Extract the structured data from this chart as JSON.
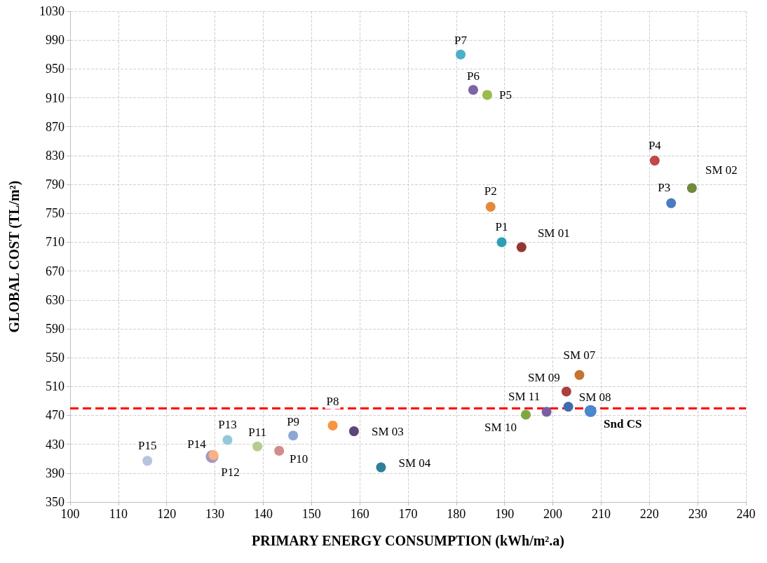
{
  "chart_data": {
    "type": "scatter",
    "xlabel": "PRIMARY ENERGY CONSUMPTION (kWh/m².a)",
    "ylabel": "GLOBAL COST (TL/m²)",
    "xlim": [
      100,
      240
    ],
    "xticks": [
      100,
      110,
      120,
      130,
      140,
      150,
      160,
      170,
      180,
      190,
      200,
      210,
      220,
      230,
      240
    ],
    "ylim": [
      350,
      1030
    ],
    "yticks": [
      350,
      390,
      430,
      470,
      510,
      550,
      590,
      630,
      670,
      710,
      750,
      790,
      830,
      870,
      910,
      950,
      990,
      1030
    ],
    "grid": true,
    "marker": "circle",
    "legend": false,
    "ref_lines": [
      {
        "axis": "y",
        "value": 480,
        "color": "#ff0000",
        "line_style": "dashed"
      }
    ],
    "series": [
      {
        "name": "P1",
        "color": "#2e9fb5",
        "x": [
          189.4
        ],
        "values": [
          710
        ]
      },
      {
        "name": "P2",
        "color": "#e38a3a",
        "x": [
          187.1
        ],
        "values": [
          759
        ]
      },
      {
        "name": "P3",
        "color": "#4a7cc0",
        "x": [
          224.5
        ],
        "values": [
          764
        ]
      },
      {
        "name": "P4",
        "color": "#c0474a",
        "x": [
          221.1
        ],
        "values": [
          823
        ]
      },
      {
        "name": "P5",
        "color": "#9bbb4c",
        "x": [
          186.4
        ],
        "values": [
          914
        ]
      },
      {
        "name": "P6",
        "color": "#7e63a6",
        "x": [
          183.5
        ],
        "values": [
          921
        ]
      },
      {
        "name": "P7",
        "color": "#4bafc8",
        "x": [
          180.9
        ],
        "values": [
          970
        ]
      },
      {
        "name": "P8",
        "color": "#f79542",
        "x": [
          154.4
        ],
        "values": [
          456
        ]
      },
      {
        "name": "P9",
        "color": "#8ea6d4",
        "x": [
          146.2
        ],
        "values": [
          442
        ]
      },
      {
        "name": "P10",
        "color": "#d48b8b",
        "x": [
          143.3
        ],
        "values": [
          421
        ]
      },
      {
        "name": "P11",
        "color": "#b5cc8f",
        "x": [
          138.8
        ],
        "values": [
          427
        ]
      },
      {
        "name": "P12",
        "color": "#a596c4",
        "x": [
          129.4
        ],
        "values": [
          413
        ]
      },
      {
        "name": "P13",
        "color": "#93c8da",
        "x": [
          132.6
        ],
        "values": [
          436
        ]
      },
      {
        "name": "P14",
        "color": "#fbb082",
        "x": [
          129.7
        ],
        "values": [
          415
        ]
      },
      {
        "name": "P15",
        "color": "#b7c3e0",
        "x": [
          116
        ],
        "values": [
          407
        ]
      },
      {
        "name": "SM 01",
        "color": "#943634",
        "x": [
          193.5
        ],
        "values": [
          703
        ]
      },
      {
        "name": "SM 02",
        "color": "#6f8a3a",
        "x": [
          228.8
        ],
        "values": [
          785
        ]
      },
      {
        "name": "SM 03",
        "color": "#5d4678",
        "x": [
          158.8
        ],
        "values": [
          448
        ]
      },
      {
        "name": "SM 04",
        "color": "#2e8096",
        "x": [
          164.4
        ],
        "values": [
          398
        ]
      },
      {
        "name": "SM 07",
        "color": "#c57432",
        "x": [
          205.5
        ],
        "values": [
          526
        ]
      },
      {
        "name": "SM 08",
        "color": "#3c6eaf",
        "x": [
          203.2
        ],
        "values": [
          482
        ]
      },
      {
        "name": "SM 09",
        "color": "#ad3e3e",
        "x": [
          202.8
        ],
        "values": [
          503
        ]
      },
      {
        "name": "SM 10",
        "color": "#80a642",
        "x": [
          194.4
        ],
        "values": [
          471
        ]
      },
      {
        "name": "SM 11",
        "color": "#7a5fa3",
        "x": [
          198.7
        ],
        "values": [
          475
        ]
      },
      {
        "name": "Snd CS",
        "color": "#4a87cc",
        "x": [
          207.8
        ],
        "values": [
          476
        ]
      }
    ]
  }
}
